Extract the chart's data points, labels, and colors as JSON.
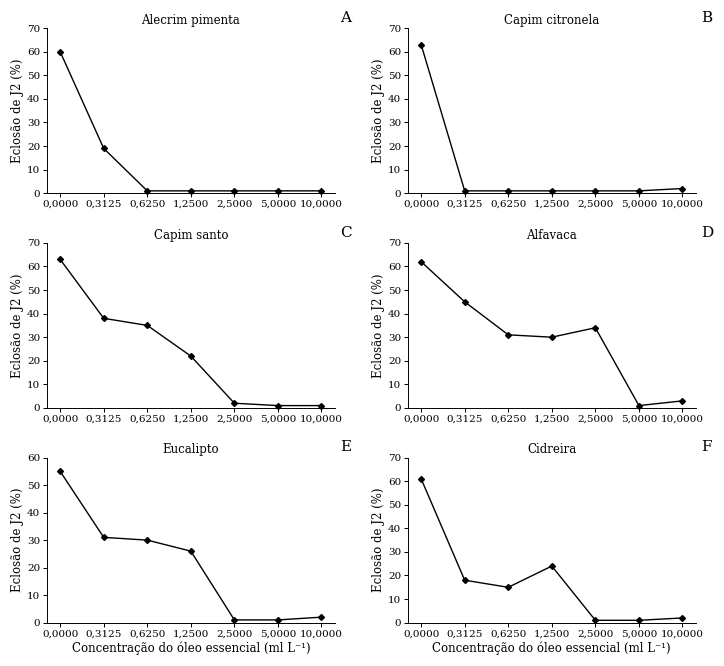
{
  "x_positions": [
    0,
    1,
    2,
    3,
    4,
    5,
    6
  ],
  "x_labels": [
    "0,0000",
    "0,3125",
    "0,6250",
    "1,2500",
    "2,5000",
    "5,0000",
    "10,0000"
  ],
  "subplots": [
    {
      "title": "Alecrim pimenta",
      "label": "A",
      "y_values": [
        60,
        19,
        1,
        1,
        1,
        1,
        1
      ],
      "ylim": [
        0,
        70
      ],
      "yticks": [
        0,
        10,
        20,
        30,
        40,
        50,
        60,
        70
      ]
    },
    {
      "title": "Capim citronela",
      "label": "B",
      "y_values": [
        63,
        1,
        1,
        1,
        1,
        1,
        2
      ],
      "ylim": [
        0,
        70
      ],
      "yticks": [
        0,
        10,
        20,
        30,
        40,
        50,
        60,
        70
      ]
    },
    {
      "title": "Capim santo",
      "label": "C",
      "y_values": [
        63,
        38,
        35,
        22,
        2,
        1,
        1
      ],
      "ylim": [
        0,
        70
      ],
      "yticks": [
        0,
        10,
        20,
        30,
        40,
        50,
        60,
        70
      ]
    },
    {
      "title": "Alfavaca",
      "label": "D",
      "y_values": [
        62,
        45,
        31,
        30,
        34,
        1,
        3
      ],
      "ylim": [
        0,
        70
      ],
      "yticks": [
        0,
        10,
        20,
        30,
        40,
        50,
        60,
        70
      ]
    },
    {
      "title": "Eucalipto",
      "label": "E",
      "y_values": [
        55,
        31,
        30,
        26,
        1,
        1,
        2
      ],
      "ylim": [
        0,
        60
      ],
      "yticks": [
        0,
        10,
        20,
        30,
        40,
        50,
        60
      ]
    },
    {
      "title": "Cidreira",
      "label": "F",
      "y_values": [
        61,
        18,
        15,
        24,
        1,
        1,
        2
      ],
      "ylim": [
        0,
        70
      ],
      "yticks": [
        0,
        10,
        20,
        30,
        40,
        50,
        60,
        70
      ]
    }
  ],
  "xlabel": "Concentração do óleo essencial (ml L⁻¹)",
  "ylabel": "Eclosão de J2 (%)",
  "line_color": "#000000",
  "marker": "D",
  "marker_size": 3,
  "line_width": 1.0,
  "background_color": "#ffffff",
  "title_fontsize": 8.5,
  "label_fontsize": 11,
  "tick_fontsize": 7.5,
  "axis_label_fontsize": 8.5
}
